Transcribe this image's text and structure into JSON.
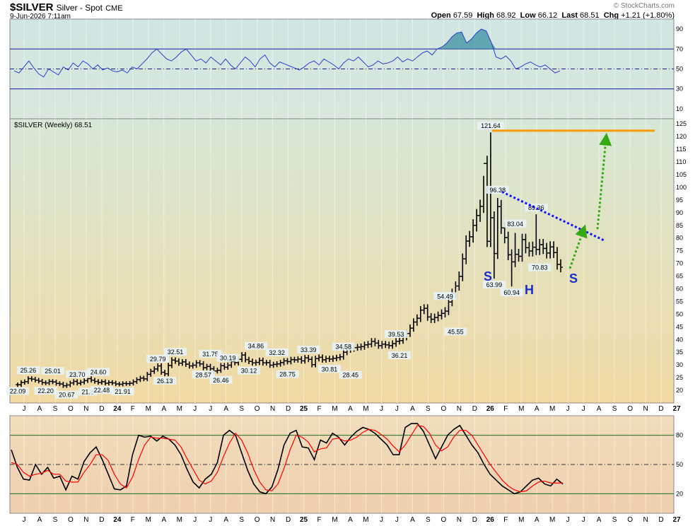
{
  "header": {
    "symbol": "$SILVER",
    "name": "Silver - Spot",
    "exchange": "CME",
    "date": "9-Jun-2026 7:11am",
    "open_label": "Open",
    "open": "67.59",
    "high_label": "High",
    "high": "68.92",
    "low_label": "Low",
    "low": "66.12",
    "last_label": "Last",
    "last": "68.51",
    "chg_label": "Chg",
    "chg": "+1.21 (+1.80%)",
    "watermark": "© StockCharts.com"
  },
  "price_panel_label": "$SILVER (Weekly) 68.51",
  "pattern_labels": {
    "left": "S",
    "head": "H",
    "right": "S"
  },
  "colors": {
    "rsi_bg_top": "#cfe6e2",
    "rsi_bg_bottom": "#d8e8dc",
    "price_bg_top": "#d6e8d6",
    "price_bg_bottom": "#f2d9a2",
    "stoch_bg_top": "#f0dcbb",
    "stoch_bg_bottom": "#efcfaf",
    "resistance": "#ff9900",
    "trendline": "#1010ff",
    "arrow": "#33aa11",
    "pattern_text": "#1a2dcc",
    "stoch_k": "#000000",
    "stoch_d": "#ff0000"
  },
  "x_axis_labels": [
    "J",
    "A",
    "S",
    "O",
    "N",
    "D",
    "24",
    "F",
    "M",
    "A",
    "M",
    "J",
    "J",
    "A",
    "S",
    "O",
    "N",
    "D",
    "25",
    "F",
    "M",
    "A",
    "M",
    "J",
    "J",
    "A",
    "S",
    "O",
    "N",
    "D",
    "26",
    "F",
    "M",
    "A",
    "M",
    "J",
    "J",
    "A",
    "S",
    "O",
    "N",
    "D",
    "27"
  ],
  "chart_data": [
    {
      "type": "line",
      "indicator": "RSI",
      "y_ticks": [
        10,
        30,
        50,
        70,
        90
      ],
      "ylim": [
        0,
        100
      ],
      "levels": [
        30,
        50,
        70
      ],
      "values": [
        48,
        46,
        52,
        58,
        51,
        45,
        42,
        50,
        47,
        44,
        52,
        49,
        56,
        52,
        58,
        55,
        50,
        54,
        49,
        51,
        48,
        47,
        49,
        46,
        52,
        50,
        55,
        60,
        66,
        70,
        65,
        60,
        58,
        62,
        67,
        70,
        64,
        58,
        60,
        56,
        62,
        58,
        54,
        60,
        54,
        50,
        56,
        62,
        58,
        52,
        60,
        64,
        56,
        52,
        57,
        55,
        53,
        51,
        49,
        52,
        56,
        58,
        54,
        60,
        57,
        54,
        50,
        56,
        60,
        58,
        62,
        57,
        52,
        54,
        58,
        55,
        56,
        58,
        62,
        57,
        60,
        58,
        62,
        66,
        68,
        64,
        70,
        72,
        76,
        82,
        86,
        87,
        76,
        80,
        86,
        90,
        88,
        77,
        62,
        60,
        63,
        58,
        50,
        52,
        55,
        57,
        54,
        52,
        54,
        50,
        46,
        48
      ]
    },
    {
      "type": "ohlc",
      "series_name": "$SILVER (Weekly)",
      "y_ticks": [
        20,
        25,
        30,
        35,
        40,
        45,
        50,
        55,
        60,
        65,
        70,
        75,
        80,
        85,
        90,
        95,
        100,
        105,
        110,
        115,
        120,
        125
      ],
      "ylim": [
        15,
        127
      ],
      "close": [
        22.2,
        23.1,
        23.4,
        24.6,
        24.4,
        24.0,
        23.6,
        23.0,
        22.9,
        23.5,
        23.3,
        22.7,
        22.5,
        21.8,
        22.1,
        22.9,
        23.5,
        22.8,
        23.2,
        23.8,
        24.6,
        24.0,
        23.5,
        23.1,
        23.4,
        22.8,
        23.1,
        22.9,
        22.5,
        22.4,
        22.7,
        22.6,
        22.8,
        23.4,
        24.2,
        24.8,
        24.5,
        26.3,
        27.5,
        28.4,
        29.6,
        27.1,
        26.5,
        29.8,
        31.9,
        31.5,
        30.7,
        31.2,
        30.3,
        29.6,
        29.9,
        30.8,
        30.4,
        28.9,
        29.4,
        28.5,
        27.6,
        27.9,
        29.7,
        29.1,
        29.9,
        31.3,
        30.9,
        32.2,
        33.9,
        32.1,
        31.4,
        30.8,
        31.0,
        31.8,
        30.8,
        30.9,
        29.9,
        30.2,
        30.4,
        30.9,
        31.6,
        31.3,
        32.1,
        32.0,
        32.3,
        31.6,
        32.8,
        32.2,
        30.1,
        32.5,
        33.0,
        32.0,
        32.5,
        32.3,
        32.6,
        32.9,
        33.2,
        35.0,
        36.0,
        36.4,
        36.8,
        37.0,
        37.2,
        37.9,
        38.2,
        39.3,
        38.6,
        37.6,
        38.2,
        37.9,
        37.6,
        38.4,
        39.3,
        39.6,
        41.0,
        42.4,
        44.5,
        46.9,
        48.4,
        51.6,
        52.3,
        48.9,
        48.0,
        48.7,
        49.5,
        50.3,
        51.2,
        54.8,
        58.3,
        61.1,
        64.9,
        71.8,
        78.8,
        80.5,
        85.0,
        88.9,
        92.5,
        109.4,
        78.7,
        88.0,
        73.9,
        92.4,
        84.0,
        80.2,
        73.4,
        70.6,
        73.6,
        72.8,
        79.4,
        76.2,
        74.9,
        76.4,
        75.5,
        77.4,
        75.9,
        74.1,
        76.5,
        74.3,
        69.6,
        68.5
      ],
      "annotations": [
        {
          "value": 22.09,
          "label": "22.09"
        },
        {
          "value": 25.26,
          "label": "25.26"
        },
        {
          "value": 22.2,
          "label": "22.20"
        },
        {
          "value": 25.01,
          "label": "25.01"
        },
        {
          "value": 20.67,
          "label": "20.67"
        },
        {
          "value": 23.7,
          "label": "23.70"
        },
        {
          "value": 21.8,
          "label": "21.8"
        },
        {
          "value": 22.48,
          "label": "22.48"
        },
        {
          "value": 24.6,
          "label": "24.60"
        },
        {
          "value": 21.91,
          "label": "21.91"
        },
        {
          "value": 29.79,
          "label": "29.79"
        },
        {
          "value": 26.13,
          "label": "26.13"
        },
        {
          "value": 32.51,
          "label": "32.51"
        },
        {
          "value": 28.57,
          "label": "28.57"
        },
        {
          "value": 31.75,
          "label": "31.75"
        },
        {
          "value": 26.46,
          "label": "26.46"
        },
        {
          "value": 30.19,
          "label": "30.19"
        },
        {
          "value": 30.12,
          "label": "30.12"
        },
        {
          "value": 34.86,
          "label": "34.86"
        },
        {
          "value": 32.32,
          "label": "32.32"
        },
        {
          "value": 28.75,
          "label": "28.75"
        },
        {
          "value": 33.39,
          "label": "33.39"
        },
        {
          "value": 30.81,
          "label": "30.81"
        },
        {
          "value": 34.58,
          "label": "34.58"
        },
        {
          "value": 28.45,
          "label": "28.45"
        },
        {
          "value": 39.53,
          "label": "39.53"
        },
        {
          "value": 36.21,
          "label": "36.21"
        },
        {
          "value": 54.49,
          "label": "54.49"
        },
        {
          "value": 45.55,
          "label": "45.55"
        },
        {
          "value": 121.64,
          "label": "121.64"
        },
        {
          "value": 63.99,
          "label": "63.99"
        },
        {
          "value": 96.38,
          "label": "96.38"
        },
        {
          "value": 83.04,
          "label": "83.04"
        },
        {
          "value": 60.94,
          "label": "60.94"
        },
        {
          "value": 89.36,
          "label": "89.36"
        },
        {
          "value": 70.83,
          "label": "70.83"
        }
      ],
      "resistance_level": 122.3,
      "downtrend_line": {
        "from": 98.2,
        "to": 79.0
      }
    },
    {
      "type": "line",
      "indicator": "Stochastic",
      "y_ticks": [
        20,
        50,
        80
      ],
      "ylim": [
        0,
        100
      ],
      "levels": [
        20,
        50,
        80
      ],
      "series": [
        {
          "name": "%K",
          "values": [
            65,
            47,
            35,
            34,
            50,
            40,
            47,
            36,
            38,
            24,
            38,
            35,
            53,
            62,
            68,
            55,
            40,
            25,
            24,
            28,
            60,
            80,
            78,
            79,
            74,
            79,
            76,
            70,
            60,
            45,
            32,
            26,
            35,
            40,
            52,
            80,
            85,
            80,
            62,
            44,
            30,
            22,
            20,
            27,
            45,
            70,
            82,
            85,
            68,
            67,
            55,
            75,
            72,
            82,
            78,
            70,
            78,
            84,
            88,
            86,
            82,
            76,
            70,
            60,
            60,
            88,
            92,
            92,
            84,
            70,
            56,
            68,
            80,
            86,
            90,
            80,
            70,
            62,
            50,
            40,
            34,
            28,
            24,
            20,
            22,
            28,
            34,
            36,
            30,
            28,
            35,
            30
          ]
        },
        {
          "name": "%D",
          "values": [
            52,
            50,
            42,
            38,
            40,
            41,
            44,
            40,
            40,
            33,
            32,
            32,
            42,
            50,
            60,
            60,
            54,
            40,
            30,
            26,
            37,
            55,
            70,
            78,
            77,
            77,
            76,
            75,
            68,
            56,
            45,
            34,
            30,
            33,
            42,
            58,
            72,
            82,
            75,
            62,
            45,
            32,
            24,
            23,
            30,
            46,
            65,
            80,
            78,
            73,
            63,
            66,
            67,
            76,
            77,
            74,
            75,
            78,
            83,
            86,
            85,
            81,
            76,
            69,
            63,
            70,
            80,
            90,
            89,
            82,
            70,
            64,
            68,
            78,
            85,
            85,
            80,
            70,
            60,
            50,
            42,
            34,
            28,
            24,
            22,
            23,
            28,
            32,
            33,
            31,
            31,
            31
          ]
        }
      ]
    }
  ]
}
